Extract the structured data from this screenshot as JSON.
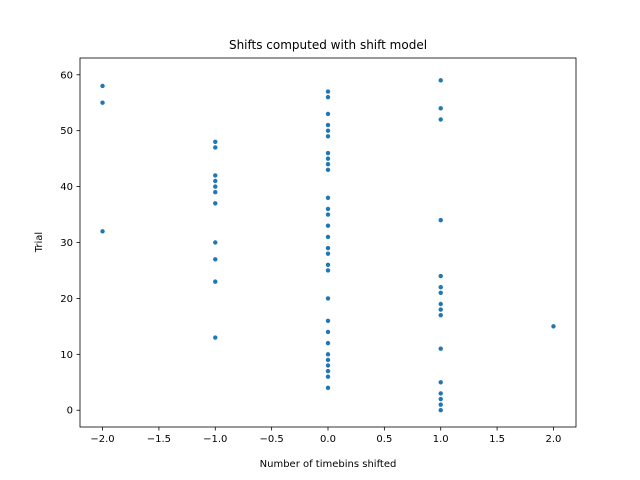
{
  "chart_data": {
    "type": "scatter",
    "title": "Shifts computed with shift model",
    "xlabel": "Number of timebins shifted",
    "ylabel": "Trial",
    "xlim": [
      -2.2,
      2.2
    ],
    "ylim": [
      -3,
      63
    ],
    "xticks": [
      -2.0,
      -1.5,
      -1.0,
      -0.5,
      0.0,
      0.5,
      1.0,
      1.5,
      2.0
    ],
    "xtick_labels": [
      "−2.0",
      "−1.5",
      "−1.0",
      "−0.5",
      "0.0",
      "0.5",
      "1.0",
      "1.5",
      "2.0"
    ],
    "yticks": [
      0,
      10,
      20,
      30,
      40,
      50,
      60
    ],
    "ytick_labels": [
      "0",
      "10",
      "20",
      "30",
      "40",
      "50",
      "60"
    ],
    "grid": false,
    "marker_color": "#1f77b4",
    "points": [
      {
        "x": -2,
        "y": 58
      },
      {
        "x": -2,
        "y": 55
      },
      {
        "x": -2,
        "y": 32
      },
      {
        "x": -1,
        "y": 48
      },
      {
        "x": -1,
        "y": 47
      },
      {
        "x": -1,
        "y": 42
      },
      {
        "x": -1,
        "y": 41
      },
      {
        "x": -1,
        "y": 40
      },
      {
        "x": -1,
        "y": 39
      },
      {
        "x": -1,
        "y": 37
      },
      {
        "x": -1,
        "y": 30
      },
      {
        "x": -1,
        "y": 27
      },
      {
        "x": -1,
        "y": 23
      },
      {
        "x": -1,
        "y": 13
      },
      {
        "x": 0,
        "y": 57
      },
      {
        "x": 0,
        "y": 56
      },
      {
        "x": 0,
        "y": 53
      },
      {
        "x": 0,
        "y": 51
      },
      {
        "x": 0,
        "y": 50
      },
      {
        "x": 0,
        "y": 49
      },
      {
        "x": 0,
        "y": 46
      },
      {
        "x": 0,
        "y": 45
      },
      {
        "x": 0,
        "y": 44
      },
      {
        "x": 0,
        "y": 43
      },
      {
        "x": 0,
        "y": 38
      },
      {
        "x": 0,
        "y": 36
      },
      {
        "x": 0,
        "y": 35
      },
      {
        "x": 0,
        "y": 33
      },
      {
        "x": 0,
        "y": 31
      },
      {
        "x": 0,
        "y": 29
      },
      {
        "x": 0,
        "y": 28
      },
      {
        "x": 0,
        "y": 26
      },
      {
        "x": 0,
        "y": 25
      },
      {
        "x": 0,
        "y": 20
      },
      {
        "x": 0,
        "y": 16
      },
      {
        "x": 0,
        "y": 14
      },
      {
        "x": 0,
        "y": 12
      },
      {
        "x": 0,
        "y": 10
      },
      {
        "x": 0,
        "y": 9
      },
      {
        "x": 0,
        "y": 8
      },
      {
        "x": 0,
        "y": 7
      },
      {
        "x": 0,
        "y": 6
      },
      {
        "x": 0,
        "y": 4
      },
      {
        "x": 1,
        "y": 59
      },
      {
        "x": 1,
        "y": 54
      },
      {
        "x": 1,
        "y": 52
      },
      {
        "x": 1,
        "y": 34
      },
      {
        "x": 1,
        "y": 24
      },
      {
        "x": 1,
        "y": 22
      },
      {
        "x": 1,
        "y": 21
      },
      {
        "x": 1,
        "y": 19
      },
      {
        "x": 1,
        "y": 18
      },
      {
        "x": 1,
        "y": 17
      },
      {
        "x": 1,
        "y": 11
      },
      {
        "x": 1,
        "y": 5
      },
      {
        "x": 1,
        "y": 3
      },
      {
        "x": 1,
        "y": 2
      },
      {
        "x": 1,
        "y": 1
      },
      {
        "x": 1,
        "y": 0
      },
      {
        "x": 2,
        "y": 15
      }
    ]
  }
}
